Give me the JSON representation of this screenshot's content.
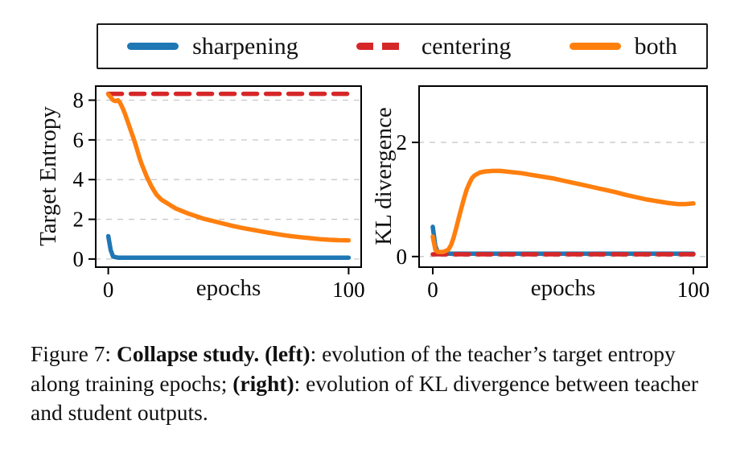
{
  "legend": {
    "items": [
      {
        "label": "sharpening",
        "color": "#1f77b4",
        "dash": false
      },
      {
        "label": "centering",
        "color": "#d62728",
        "dash": true
      },
      {
        "label": "both",
        "color": "#ff7f0e",
        "dash": false
      }
    ]
  },
  "caption": {
    "prefix": "Figure 7: ",
    "bold1": "Collapse study. (left)",
    "mid": ": evolution of the teacher’s target entropy along training epochs; ",
    "bold2": "(right)",
    "tail": ": evolution of KL divergence between teacher and student outputs."
  },
  "chart_data": [
    {
      "type": "line",
      "title": "",
      "xlabel": "epochs",
      "ylabel": "Target Entropy",
      "xlim": [
        0,
        100
      ],
      "ylim": [
        -0.45,
        8.75
      ],
      "xticks": [
        0,
        100
      ],
      "yticks": [
        0,
        2,
        4,
        6,
        8
      ],
      "grid": true,
      "legend_position": "top-outside",
      "series": [
        {
          "name": "sharpening",
          "color": "#1f77b4",
          "dash": false,
          "points": [
            [
              0,
              1.15
            ],
            [
              1,
              0.45
            ],
            [
              2,
              0.12
            ],
            [
              4,
              0.07
            ],
            [
              10,
              0.07
            ],
            [
              50,
              0.07
            ],
            [
              100,
              0.07
            ]
          ]
        },
        {
          "name": "centering",
          "color": "#d62728",
          "dash": true,
          "points": [
            [
              0,
              8.32
            ],
            [
              100,
              8.32
            ]
          ]
        },
        {
          "name": "both",
          "color": "#ff7f0e",
          "dash": false,
          "points": [
            [
              0,
              8.3
            ],
            [
              1,
              8.15
            ],
            [
              2,
              8.0
            ],
            [
              3,
              7.95
            ],
            [
              4,
              8.0
            ],
            [
              5,
              7.85
            ],
            [
              6,
              7.6
            ],
            [
              7,
              7.3
            ],
            [
              8,
              6.95
            ],
            [
              9,
              6.6
            ],
            [
              10,
              6.25
            ],
            [
              11,
              5.9
            ],
            [
              12,
              5.5
            ],
            [
              13,
              5.1
            ],
            [
              14,
              4.75
            ],
            [
              15,
              4.45
            ],
            [
              16,
              4.15
            ],
            [
              17,
              3.9
            ],
            [
              18,
              3.65
            ],
            [
              19,
              3.45
            ],
            [
              20,
              3.25
            ],
            [
              22,
              3.0
            ],
            [
              24,
              2.85
            ],
            [
              26,
              2.7
            ],
            [
              28,
              2.55
            ],
            [
              30,
              2.45
            ],
            [
              33,
              2.3
            ],
            [
              36,
              2.18
            ],
            [
              40,
              2.02
            ],
            [
              44,
              1.9
            ],
            [
              48,
              1.78
            ],
            [
              52,
              1.66
            ],
            [
              56,
              1.56
            ],
            [
              60,
              1.47
            ],
            [
              64,
              1.38
            ],
            [
              68,
              1.3
            ],
            [
              72,
              1.22
            ],
            [
              76,
              1.15
            ],
            [
              80,
              1.1
            ],
            [
              84,
              1.05
            ],
            [
              88,
              1.0
            ],
            [
              92,
              0.97
            ],
            [
              96,
              0.95
            ],
            [
              100,
              0.94
            ]
          ]
        }
      ]
    },
    {
      "type": "line",
      "title": "",
      "xlabel": "epochs",
      "ylabel": "KL divergence",
      "xlim": [
        0,
        100
      ],
      "ylim": [
        -0.2,
        3.0
      ],
      "xticks": [
        0,
        100
      ],
      "yticks": [
        0,
        2
      ],
      "grid": true,
      "legend_position": "top-outside",
      "series": [
        {
          "name": "sharpening",
          "color": "#1f77b4",
          "dash": false,
          "points": [
            [
              0,
              0.52
            ],
            [
              1,
              0.18
            ],
            [
              2,
              0.07
            ],
            [
              5,
              0.05
            ],
            [
              100,
              0.05
            ]
          ]
        },
        {
          "name": "centering",
          "color": "#d62728",
          "dash": true,
          "points": [
            [
              0,
              0.04
            ],
            [
              100,
              0.04
            ]
          ]
        },
        {
          "name": "both",
          "color": "#ff7f0e",
          "dash": false,
          "points": [
            [
              0,
              0.35
            ],
            [
              1,
              0.12
            ],
            [
              2,
              0.08
            ],
            [
              4,
              0.08
            ],
            [
              6,
              0.12
            ],
            [
              7,
              0.2
            ],
            [
              8,
              0.33
            ],
            [
              9,
              0.5
            ],
            [
              10,
              0.68
            ],
            [
              11,
              0.85
            ],
            [
              12,
              1.02
            ],
            [
              13,
              1.17
            ],
            [
              14,
              1.28
            ],
            [
              15,
              1.37
            ],
            [
              16,
              1.42
            ],
            [
              18,
              1.47
            ],
            [
              20,
              1.49
            ],
            [
              23,
              1.5
            ],
            [
              26,
              1.5
            ],
            [
              30,
              1.48
            ],
            [
              34,
              1.46
            ],
            [
              38,
              1.43
            ],
            [
              42,
              1.4
            ],
            [
              46,
              1.37
            ],
            [
              50,
              1.33
            ],
            [
              54,
              1.29
            ],
            [
              58,
              1.25
            ],
            [
              62,
              1.21
            ],
            [
              66,
              1.17
            ],
            [
              70,
              1.13
            ],
            [
              74,
              1.08
            ],
            [
              78,
              1.04
            ],
            [
              82,
              1.0
            ],
            [
              86,
              0.97
            ],
            [
              90,
              0.94
            ],
            [
              94,
              0.92
            ],
            [
              97,
              0.92
            ],
            [
              100,
              0.93
            ]
          ]
        }
      ]
    }
  ]
}
